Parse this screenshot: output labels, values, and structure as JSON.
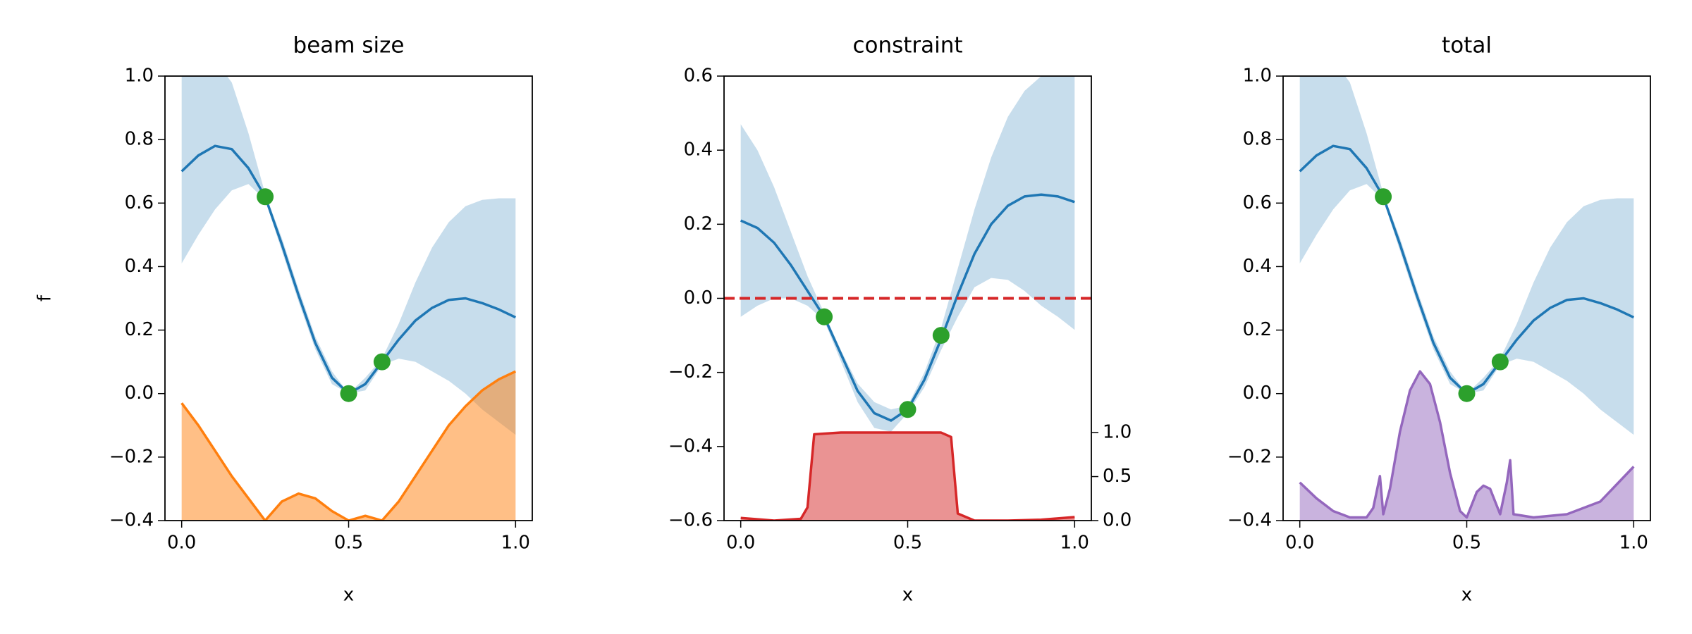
{
  "chart_data": [
    {
      "type": "line",
      "title": "beam size",
      "xlabel": "x",
      "ylabel": "f",
      "xlim": [
        -0.05,
        1.05
      ],
      "xticks": [
        {
          "value": 0,
          "label": "0.0"
        },
        {
          "value": 0.5,
          "label": "0.5"
        },
        {
          "value": 1,
          "label": "1.0"
        }
      ],
      "ylim": [
        -0.4,
        1.0
      ],
      "yticks": [
        {
          "value": -0.4,
          "label": "−0.4"
        },
        {
          "value": -0.2,
          "label": "−0.2"
        },
        {
          "value": 0,
          "label": "0.0"
        },
        0.2,
        0.4,
        0.6,
        0.8,
        {
          "value": 1,
          "label": "1.0"
        }
      ],
      "series": [
        {
          "style": "band",
          "color": "#1f77b4",
          "x": [
            0,
            0.05,
            0.1,
            0.15,
            0.2,
            0.25,
            0.3,
            0.35,
            0.4,
            0.45,
            0.5,
            0.55,
            0.6,
            0.65,
            0.7,
            0.75,
            0.8,
            0.85,
            0.9,
            0.95,
            1.0
          ],
          "upper": [
            1.05,
            1.07,
            1.05,
            0.98,
            0.82,
            0.63,
            0.49,
            0.33,
            0.18,
            0.07,
            0.0,
            0.05,
            0.11,
            0.22,
            0.35,
            0.46,
            0.54,
            0.59,
            0.61,
            0.615,
            0.615
          ],
          "lower": [
            0.41,
            0.5,
            0.58,
            0.64,
            0.66,
            0.61,
            0.45,
            0.29,
            0.14,
            0.03,
            0.0,
            0.01,
            0.09,
            0.11,
            0.1,
            0.07,
            0.04,
            0.0,
            -0.05,
            -0.09,
            -0.13
          ]
        },
        {
          "style": "line",
          "color": "#1f77b4",
          "x": [
            0,
            0.05,
            0.1,
            0.15,
            0.2,
            0.25,
            0.3,
            0.35,
            0.4,
            0.45,
            0.5,
            0.55,
            0.6,
            0.65,
            0.7,
            0.75,
            0.8,
            0.85,
            0.9,
            0.95,
            1.0
          ],
          "values": [
            0.7,
            0.75,
            0.78,
            0.77,
            0.71,
            0.62,
            0.47,
            0.31,
            0.16,
            0.05,
            0.0,
            0.03,
            0.1,
            0.17,
            0.23,
            0.27,
            0.295,
            0.3,
            0.285,
            0.265,
            0.24
          ]
        },
        {
          "style": "area",
          "color": "#ff7f0e",
          "x": [
            0,
            0.05,
            0.1,
            0.15,
            0.2,
            0.25,
            0.3,
            0.35,
            0.4,
            0.45,
            0.5,
            0.55,
            0.6,
            0.65,
            0.7,
            0.75,
            0.8,
            0.85,
            0.9,
            0.95,
            1.0
          ],
          "values": [
            -0.03,
            -0.1,
            -0.18,
            -0.26,
            -0.33,
            -0.4,
            -0.34,
            -0.315,
            -0.33,
            -0.37,
            -0.4,
            -0.385,
            -0.4,
            -0.34,
            -0.26,
            -0.18,
            -0.1,
            -0.04,
            0.01,
            0.045,
            0.07
          ]
        },
        {
          "style": "points",
          "color": "#2ca02c",
          "x": [
            0.25,
            0.5,
            0.6
          ],
          "values": [
            0.62,
            0.0,
            0.1
          ]
        }
      ]
    },
    {
      "type": "line",
      "title": "constraint",
      "xlabel": "x",
      "xlim": [
        -0.05,
        1.05
      ],
      "xticks": [
        {
          "value": 0,
          "label": "0.0"
        },
        {
          "value": 0.5,
          "label": "0.5"
        },
        {
          "value": 1,
          "label": "1.0"
        }
      ],
      "ylim": [
        -0.6,
        0.6
      ],
      "yticks": [
        {
          "value": -0.6,
          "label": "−0.6"
        },
        {
          "value": -0.4,
          "label": "−0.4"
        },
        {
          "value": -0.2,
          "label": "−0.2"
        },
        {
          "value": 0,
          "label": "0.0"
        },
        0.2,
        0.4,
        0.6
      ],
      "y2lim": [
        0,
        5.05
      ],
      "y2ticks": [
        {
          "value": 0,
          "label": "0.0"
        },
        0.5,
        {
          "value": 1,
          "label": "1.0"
        }
      ],
      "series": [
        {
          "style": "band",
          "color": "#1f77b4",
          "x": [
            0,
            0.05,
            0.1,
            0.15,
            0.2,
            0.25,
            0.3,
            0.35,
            0.4,
            0.45,
            0.5,
            0.55,
            0.6,
            0.65,
            0.7,
            0.75,
            0.8,
            0.85,
            0.9,
            0.95,
            1.0
          ],
          "upper": [
            0.47,
            0.4,
            0.3,
            0.18,
            0.06,
            -0.04,
            -0.14,
            -0.23,
            -0.28,
            -0.3,
            -0.29,
            -0.2,
            -0.08,
            0.08,
            0.24,
            0.38,
            0.49,
            0.56,
            0.6,
            0.61,
            0.61
          ],
          "lower": [
            -0.05,
            -0.02,
            0.0,
            0.0,
            -0.02,
            -0.06,
            -0.17,
            -0.28,
            -0.35,
            -0.36,
            -0.31,
            -0.24,
            -0.14,
            -0.05,
            0.03,
            0.055,
            0.05,
            0.02,
            -0.02,
            -0.05,
            -0.085
          ]
        },
        {
          "style": "line",
          "color": "#1f77b4",
          "x": [
            0,
            0.05,
            0.1,
            0.15,
            0.2,
            0.25,
            0.3,
            0.35,
            0.4,
            0.45,
            0.5,
            0.55,
            0.6,
            0.65,
            0.7,
            0.75,
            0.8,
            0.85,
            0.9,
            0.95,
            1.0
          ],
          "values": [
            0.21,
            0.19,
            0.15,
            0.09,
            0.02,
            -0.05,
            -0.15,
            -0.25,
            -0.31,
            -0.33,
            -0.3,
            -0.22,
            -0.11,
            0.01,
            0.12,
            0.2,
            0.25,
            0.275,
            0.28,
            0.275,
            0.26
          ]
        },
        {
          "style": "hline",
          "color": "#d62728",
          "value": 0
        },
        {
          "style": "area",
          "color": "#d62728",
          "axis": "y2",
          "x": [
            0,
            0.1,
            0.18,
            0.2,
            0.22,
            0.3,
            0.4,
            0.5,
            0.6,
            0.63,
            0.65,
            0.7,
            0.8,
            0.9,
            1.0
          ],
          "values": [
            0.03,
            0.0,
            0.02,
            0.15,
            0.98,
            1.0,
            1.0,
            1.0,
            1.0,
            0.95,
            0.08,
            0.0,
            0.0,
            0.01,
            0.04
          ]
        },
        {
          "style": "points",
          "color": "#2ca02c",
          "x": [
            0.25,
            0.5,
            0.6
          ],
          "values": [
            -0.05,
            -0.3,
            -0.1
          ]
        }
      ]
    },
    {
      "type": "line",
      "title": "total",
      "xlabel": "x",
      "xlim": [
        -0.05,
        1.05
      ],
      "xticks": [
        {
          "value": 0,
          "label": "0.0"
        },
        {
          "value": 0.5,
          "label": "0.5"
        },
        {
          "value": 1,
          "label": "1.0"
        }
      ],
      "ylim": [
        -0.4,
        1.0
      ],
      "yticks": [
        {
          "value": -0.4,
          "label": "−0.4"
        },
        {
          "value": -0.2,
          "label": "−0.2"
        },
        {
          "value": 0,
          "label": "0.0"
        },
        0.2,
        0.4,
        0.6,
        0.8,
        {
          "value": 1,
          "label": "1.0"
        }
      ],
      "series": [
        {
          "style": "band",
          "color": "#1f77b4",
          "x": [
            0,
            0.05,
            0.1,
            0.15,
            0.2,
            0.25,
            0.3,
            0.35,
            0.4,
            0.45,
            0.5,
            0.55,
            0.6,
            0.65,
            0.7,
            0.75,
            0.8,
            0.85,
            0.9,
            0.95,
            1.0
          ],
          "upper": [
            1.05,
            1.07,
            1.05,
            0.98,
            0.82,
            0.63,
            0.49,
            0.33,
            0.18,
            0.07,
            0.0,
            0.05,
            0.11,
            0.22,
            0.35,
            0.46,
            0.54,
            0.59,
            0.61,
            0.615,
            0.615
          ],
          "lower": [
            0.41,
            0.5,
            0.58,
            0.64,
            0.66,
            0.61,
            0.45,
            0.29,
            0.14,
            0.03,
            0.0,
            0.01,
            0.09,
            0.11,
            0.1,
            0.07,
            0.04,
            0.0,
            -0.05,
            -0.09,
            -0.13
          ]
        },
        {
          "style": "line",
          "color": "#1f77b4",
          "x": [
            0,
            0.05,
            0.1,
            0.15,
            0.2,
            0.25,
            0.3,
            0.35,
            0.4,
            0.45,
            0.5,
            0.55,
            0.6,
            0.65,
            0.7,
            0.75,
            0.8,
            0.85,
            0.9,
            0.95,
            1.0
          ],
          "values": [
            0.7,
            0.75,
            0.78,
            0.77,
            0.71,
            0.62,
            0.47,
            0.31,
            0.16,
            0.05,
            0.0,
            0.03,
            0.1,
            0.17,
            0.23,
            0.27,
            0.295,
            0.3,
            0.285,
            0.265,
            0.24
          ]
        },
        {
          "style": "area",
          "color": "#9467bd",
          "x": [
            0,
            0.05,
            0.1,
            0.15,
            0.2,
            0.22,
            0.24,
            0.25,
            0.27,
            0.3,
            0.33,
            0.36,
            0.39,
            0.42,
            0.45,
            0.48,
            0.5,
            0.53,
            0.55,
            0.57,
            0.6,
            0.62,
            0.63,
            0.64,
            0.7,
            0.8,
            0.9,
            1.0
          ],
          "values": [
            -0.28,
            -0.33,
            -0.37,
            -0.39,
            -0.39,
            -0.36,
            -0.26,
            -0.38,
            -0.3,
            -0.12,
            0.01,
            0.07,
            0.03,
            -0.09,
            -0.25,
            -0.37,
            -0.39,
            -0.31,
            -0.29,
            -0.3,
            -0.38,
            -0.28,
            -0.21,
            -0.38,
            -0.39,
            -0.38,
            -0.34,
            -0.23
          ]
        },
        {
          "style": "points",
          "color": "#2ca02c",
          "x": [
            0.25,
            0.5,
            0.6
          ],
          "values": [
            0.62,
            0.0,
            0.1
          ]
        }
      ]
    }
  ]
}
